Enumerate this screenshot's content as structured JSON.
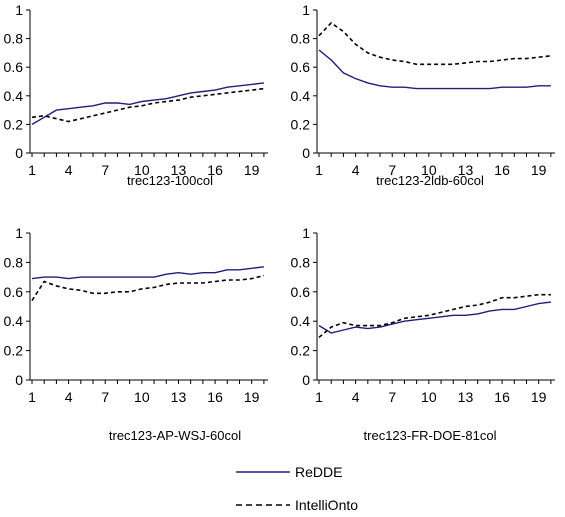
{
  "chart_data": [
    {
      "type": "line",
      "xlabel": "trec123-100col",
      "ylim": [
        0,
        1
      ],
      "yticks": [
        "0",
        "0.2",
        "0.4",
        "0.6",
        "0.8",
        "1"
      ],
      "xticks": [
        "1",
        "4",
        "7",
        "10",
        "13",
        "16",
        "19"
      ],
      "x": [
        1,
        2,
        3,
        4,
        5,
        6,
        7,
        8,
        9,
        10,
        11,
        12,
        13,
        14,
        15,
        16,
        17,
        18,
        19,
        20
      ],
      "series": [
        {
          "name": "ReDDE",
          "values": [
            0.2,
            0.25,
            0.3,
            0.31,
            0.32,
            0.33,
            0.35,
            0.35,
            0.34,
            0.36,
            0.37,
            0.38,
            0.4,
            0.42,
            0.43,
            0.44,
            0.46,
            0.47,
            0.48,
            0.49
          ]
        },
        {
          "name": "IntelliOnto",
          "values": [
            0.25,
            0.26,
            0.24,
            0.22,
            0.24,
            0.26,
            0.28,
            0.3,
            0.32,
            0.33,
            0.35,
            0.36,
            0.37,
            0.39,
            0.4,
            0.41,
            0.42,
            0.43,
            0.44,
            0.45
          ]
        }
      ]
    },
    {
      "type": "line",
      "xlabel": "trec123-2ldb-60col",
      "ylim": [
        0,
        1
      ],
      "yticks": [
        "0",
        "0.2",
        "0.4",
        "0.6",
        "0.8",
        "1"
      ],
      "xticks": [
        "1",
        "4",
        "7",
        "10",
        "13",
        "16",
        "19"
      ],
      "x": [
        1,
        2,
        3,
        4,
        5,
        6,
        7,
        8,
        9,
        10,
        11,
        12,
        13,
        14,
        15,
        16,
        17,
        18,
        19,
        20
      ],
      "series": [
        {
          "name": "ReDDE",
          "values": [
            0.72,
            0.65,
            0.56,
            0.52,
            0.49,
            0.47,
            0.46,
            0.46,
            0.45,
            0.45,
            0.45,
            0.45,
            0.45,
            0.45,
            0.45,
            0.46,
            0.46,
            0.46,
            0.47,
            0.47
          ]
        },
        {
          "name": "IntelliOnto",
          "values": [
            0.82,
            0.91,
            0.85,
            0.76,
            0.7,
            0.67,
            0.65,
            0.64,
            0.62,
            0.62,
            0.62,
            0.62,
            0.63,
            0.64,
            0.64,
            0.65,
            0.66,
            0.66,
            0.67,
            0.68
          ]
        }
      ]
    },
    {
      "type": "line",
      "xlabel": "trec123-AP-WSJ-60col",
      "ylim": [
        0,
        1
      ],
      "yticks": [
        "0",
        "0.2",
        "0.4",
        "0.6",
        "0.8",
        "1"
      ],
      "xticks": [
        "1",
        "4",
        "7",
        "10",
        "13",
        "16",
        "19"
      ],
      "x": [
        1,
        2,
        3,
        4,
        5,
        6,
        7,
        8,
        9,
        10,
        11,
        12,
        13,
        14,
        15,
        16,
        17,
        18,
        19,
        20
      ],
      "series": [
        {
          "name": "ReDDE",
          "values": [
            0.69,
            0.7,
            0.7,
            0.69,
            0.7,
            0.7,
            0.7,
            0.7,
            0.7,
            0.7,
            0.7,
            0.72,
            0.73,
            0.72,
            0.73,
            0.73,
            0.75,
            0.75,
            0.76,
            0.77
          ]
        },
        {
          "name": "IntelliOnto",
          "values": [
            0.54,
            0.67,
            0.64,
            0.62,
            0.61,
            0.59,
            0.59,
            0.6,
            0.6,
            0.62,
            0.63,
            0.65,
            0.66,
            0.66,
            0.66,
            0.67,
            0.68,
            0.68,
            0.69,
            0.71
          ]
        }
      ]
    },
    {
      "type": "line",
      "xlabel": "trec123-FR-DOE-81col",
      "ylim": [
        0,
        1
      ],
      "yticks": [
        "0",
        "0.2",
        "0.4",
        "0.6",
        "0.8",
        "1"
      ],
      "xticks": [
        "1",
        "4",
        "7",
        "10",
        "13",
        "16",
        "19"
      ],
      "x": [
        1,
        2,
        3,
        4,
        5,
        6,
        7,
        8,
        9,
        10,
        11,
        12,
        13,
        14,
        15,
        16,
        17,
        18,
        19,
        20
      ],
      "series": [
        {
          "name": "ReDDE",
          "values": [
            0.37,
            0.32,
            0.34,
            0.36,
            0.35,
            0.36,
            0.38,
            0.4,
            0.41,
            0.42,
            0.43,
            0.44,
            0.44,
            0.45,
            0.47,
            0.48,
            0.48,
            0.5,
            0.52,
            0.53
          ]
        },
        {
          "name": "IntelliOnto",
          "values": [
            0.29,
            0.36,
            0.39,
            0.37,
            0.37,
            0.37,
            0.39,
            0.42,
            0.43,
            0.44,
            0.46,
            0.48,
            0.5,
            0.51,
            0.53,
            0.56,
            0.56,
            0.57,
            0.58,
            0.58
          ]
        }
      ]
    }
  ],
  "legend": [
    {
      "label": "ReDDE",
      "color": "#1f1f7a",
      "dash": "solid"
    },
    {
      "label": "IntelliOnto",
      "color": "#000000",
      "dash": "dashed"
    }
  ],
  "colors": {
    "redde": "#1f1f7a",
    "intellionto": "#000000",
    "axis": "#000000"
  }
}
